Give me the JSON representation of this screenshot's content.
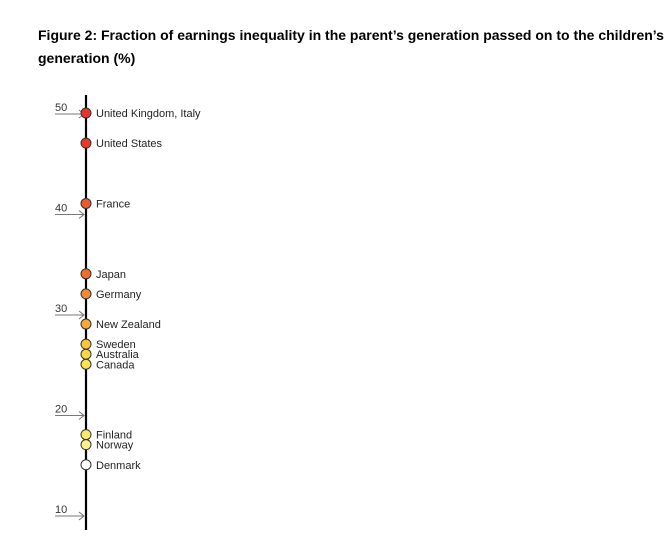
{
  "chart_data": {
    "type": "scatter",
    "title": "Figure 2: Fraction of earnings inequality in the parent’s generation passed on to the children’s generation (%)",
    "xlabel": "",
    "ylabel": "",
    "ylim": [
      10,
      50
    ],
    "ticks": [
      "50",
      "40",
      "30",
      "20",
      "10"
    ],
    "tick_values": [
      50,
      40,
      30,
      20,
      10
    ],
    "grid": false,
    "points": [
      {
        "label": "United Kingdom, Italy",
        "value": 50,
        "color": "#e8352a"
      },
      {
        "label": "United States",
        "value": 47,
        "color": "#e8382a"
      },
      {
        "label": "France",
        "value": 41,
        "color": "#ea5a2c"
      },
      {
        "label": "Japan",
        "value": 34,
        "color": "#ee6e2c"
      },
      {
        "label": "Germany",
        "value": 32,
        "color": "#f08a34"
      },
      {
        "label": "New Zealand",
        "value": 29,
        "color": "#f6a93a"
      },
      {
        "label": "Sweden",
        "value": 27,
        "color": "#f9c540"
      },
      {
        "label": "Australia",
        "value": 26,
        "color": "#fbd842"
      },
      {
        "label": "Canada",
        "value": 25,
        "color": "#fde44a"
      },
      {
        "label": "Finland",
        "value": 18,
        "color": "#fde96a"
      },
      {
        "label": "Norway",
        "value": 17,
        "color": "#fdef8c"
      },
      {
        "label": "Denmark",
        "value": 15,
        "color": "#ffffff"
      }
    ]
  }
}
